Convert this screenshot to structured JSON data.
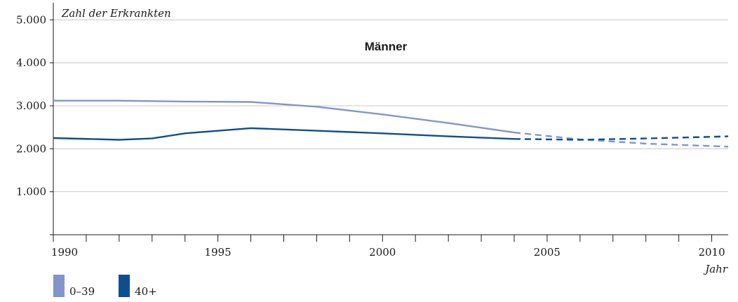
{
  "chart_data": {
    "type": "line",
    "title": "Männer",
    "ylabel": "Zahl der Erkrankten",
    "xlabel": "Jahr",
    "xlim": [
      1990,
      2010.5
    ],
    "ylim": [
      0,
      5300
    ],
    "y_ticks": [
      1000,
      2000,
      3000,
      4000,
      5000
    ],
    "y_tick_labels": [
      "1.000",
      "2.000",
      "3.000",
      "4.000",
      "5.000"
    ],
    "x_ticks": [
      1990,
      1991,
      1992,
      1993,
      1994,
      1995,
      1996,
      1997,
      1998,
      1999,
      2000,
      2001,
      2002,
      2003,
      2004,
      2005,
      2006,
      2007,
      2008,
      2009,
      2010
    ],
    "x_tick_labels": [
      {
        "value": 1990,
        "label": "1990"
      },
      {
        "value": 1995,
        "label": "1995"
      },
      {
        "value": 2000,
        "label": "2000"
      },
      {
        "value": 2005,
        "label": "2005"
      },
      {
        "value": 2010,
        "label": "2010"
      }
    ],
    "grid": true,
    "legend_position": "bottom-left",
    "series": [
      {
        "name": "0–39",
        "color": "#8196c8",
        "actual": {
          "x": [
            1990,
            1992,
            1994,
            1996,
            1998,
            2000,
            2002,
            2004
          ],
          "y": [
            3120,
            3120,
            3100,
            3090,
            2980,
            2800,
            2600,
            2380
          ]
        },
        "projection": {
          "x": [
            2004,
            2006,
            2008,
            2010.5
          ],
          "y": [
            2380,
            2220,
            2120,
            2050
          ]
        }
      },
      {
        "name": "40+",
        "color": "#0e4e8e",
        "actual": {
          "x": [
            1990,
            1992,
            1993,
            1994,
            1996,
            1998,
            2000,
            2002,
            2004
          ],
          "y": [
            2250,
            2210,
            2240,
            2360,
            2480,
            2420,
            2360,
            2290,
            2230
          ]
        },
        "projection": {
          "x": [
            2004,
            2006,
            2008,
            2010.5
          ],
          "y": [
            2230,
            2210,
            2240,
            2290
          ]
        }
      }
    ]
  }
}
